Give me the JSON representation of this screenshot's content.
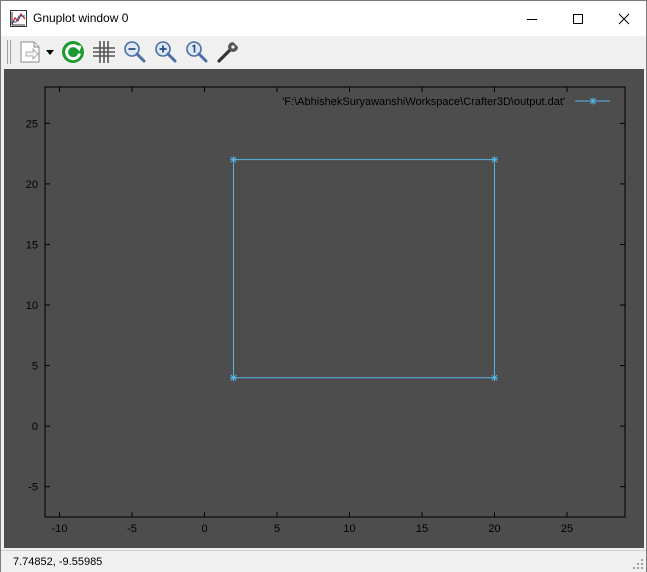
{
  "window": {
    "title": "Gnuplot window 0",
    "controls": [
      "minimize",
      "maximize",
      "close"
    ]
  },
  "toolbar": {
    "items": [
      {
        "name": "copy-print-menu",
        "icon": "document-arrow-icon"
      },
      {
        "name": "replot",
        "icon": "refresh-icon"
      },
      {
        "name": "grid",
        "icon": "grid-icon"
      },
      {
        "name": "zoom-previous",
        "icon": "zoom-out-icon"
      },
      {
        "name": "zoom-next",
        "icon": "zoom-in-icon"
      },
      {
        "name": "unzoom",
        "icon": "zoom-reset-icon"
      },
      {
        "name": "options",
        "icon": "wrench-icon"
      }
    ]
  },
  "status": {
    "coordinates": "7.74852, -9.55985"
  },
  "colors": {
    "plot_background": "#4d4d4d",
    "series": "#56b4e9"
  },
  "chart_data": {
    "type": "line",
    "title": "",
    "xlabel": "",
    "ylabel": "",
    "xlim": [
      -11,
      29
    ],
    "ylim": [
      -7.5,
      28
    ],
    "xticks": [
      -10,
      -5,
      0,
      5,
      10,
      15,
      20,
      25
    ],
    "yticks": [
      -5,
      0,
      5,
      10,
      15,
      20,
      25
    ],
    "xtick_labels": [
      "-10",
      "-5",
      "0",
      "5",
      "10",
      "15",
      "20",
      "25"
    ],
    "ytick_labels": [
      "-5",
      "0",
      "5",
      "10",
      "15",
      "20",
      "25"
    ],
    "grid": false,
    "legend": "top-right",
    "series": [
      {
        "name": "'F:\\AbhishekSuryawanshiWorkspace\\Crafter3D\\output.dat'",
        "marker": "asterisk",
        "x": [
          2,
          20,
          20,
          2,
          2
        ],
        "y": [
          4,
          4,
          22,
          22,
          4
        ]
      }
    ]
  }
}
